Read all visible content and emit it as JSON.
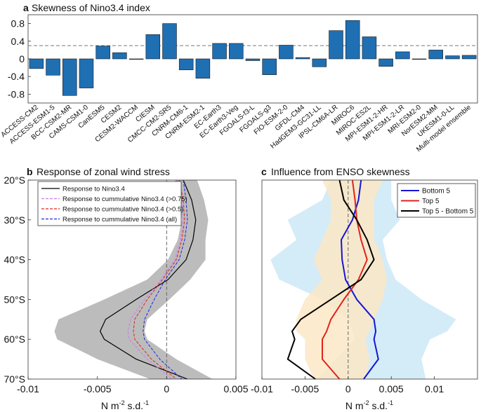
{
  "chart_data": [
    {
      "panel": "a",
      "type": "bar",
      "title": "Skewness of Nino3.4 index",
      "color": "#1f6fb3",
      "ylim": [
        -1.0,
        1.0
      ],
      "yticks": [
        -0.8,
        -0.4,
        0,
        0.4,
        0.8
      ],
      "ytick_labels": [
        "-0.8",
        "-0.4",
        "0",
        "0.4",
        "0.8"
      ],
      "threshold": 0.3,
      "categories": [
        "ACCESS-CM2",
        "ACCESS-ESM1-5",
        "BCC-CSM2-MR",
        "CAMS-CSM1-0",
        "CanESM5",
        "CESM2",
        "CESM2-WACCM",
        "CIESM",
        "CMCC-CM2-SR5",
        "CNRM-CM6-1",
        "CNRM-ESM2-1",
        "EC-Earth3",
        "EC-Earth3-Veg",
        "FGOALS-f3-L",
        "FGOALS-g3",
        "FIO-ESM-2-0",
        "GFDL-CM4",
        "HadGEM3-GC31-LL",
        "IPSL-CM6A-LR",
        "MIROC6",
        "MIROC-ES2L",
        "MPI-ESM1-2-HR",
        "MPI-ESM1-2-LR",
        "MRI-ESM2-0",
        "NorESM2-MM",
        "UKESM1-0-LL",
        "Multi-model ensemble"
      ],
      "values": [
        -0.22,
        -0.37,
        -0.83,
        -0.66,
        0.29,
        0.14,
        -0.01,
        0.55,
        0.8,
        -0.25,
        -0.44,
        0.35,
        0.35,
        -0.04,
        -0.36,
        0.31,
        0.03,
        -0.18,
        0.64,
        0.87,
        0.5,
        -0.17,
        0.16,
        0.0,
        0.2,
        0.07,
        0.08
      ]
    },
    {
      "panel": "b",
      "type": "line",
      "title": "Response of zonal wind stress",
      "xlabel_base": "N m",
      "xlabel_sup1": "-2",
      "xlabel_mid": " s.d.",
      "xlabel_sup2": "-1",
      "xlim": [
        -0.01,
        0.005
      ],
      "xticks": [
        -0.01,
        -0.005,
        0,
        0.005
      ],
      "xtick_labels": [
        "-0.01",
        "-0.005",
        "0",
        "0.005"
      ],
      "ylim": [
        -70,
        -20
      ],
      "yticks": [
        -20,
        -30,
        -40,
        -50,
        -60,
        -70
      ],
      "ytick_labels": [
        "20°S",
        "30°S",
        "40°S",
        "50°S",
        "60°S",
        "70°S"
      ],
      "lat": [
        -20,
        -25,
        -30,
        -35,
        -40,
        -45,
        -50,
        -55,
        -58,
        -60,
        -65,
        -70
      ],
      "shading": {
        "name": "Response to Nino3.4 spread",
        "color": "#b5b5b5",
        "lower": [
          0.0006,
          0.0009,
          0.0011,
          0.0008,
          0.0001,
          -0.0014,
          -0.0045,
          -0.0078,
          -0.0081,
          -0.0079,
          -0.005,
          -0.0012
        ],
        "upper": [
          0.0022,
          0.0027,
          0.003,
          0.0028,
          0.0028,
          0.0017,
          0.0002,
          -0.0014,
          -0.0016,
          -0.0014,
          0.0007,
          0.0033
        ]
      },
      "legend": [
        {
          "label": "Response to Nino3.4",
          "color": "#000000",
          "dash": "solid"
        },
        {
          "label": "Response to cummulative Nino3.4 (>0.75)",
          "color": "#c77de8",
          "dash": "dashed"
        },
        {
          "label": "Response to cummulative Nino3.4 (>0.5)",
          "color": "#e2231a",
          "dash": "dashed"
        },
        {
          "label": "Response to cummulative Nino3.4 (all)",
          "color": "#2424e0",
          "dash": "dashed"
        }
      ],
      "series": [
        {
          "name": "Response to Nino3.4",
          "values": [
            0.0012,
            0.0018,
            0.0021,
            0.0019,
            0.0014,
            0.0001,
            -0.0022,
            -0.0044,
            -0.0048,
            -0.0045,
            -0.0022,
            0.0015
          ]
        },
        {
          "name": "Response to cummulative Nino3.4 (>0.75)",
          "values": [
            0.0007,
            0.0011,
            0.0012,
            0.001,
            0.0006,
            -0.0004,
            -0.0016,
            -0.0026,
            -0.0028,
            -0.0027,
            -0.0014,
            0.0004
          ]
        },
        {
          "name": "Response to cummulative Nino3.4 (>0.5)",
          "values": [
            0.0009,
            0.0012,
            0.0013,
            0.0011,
            0.0007,
            -0.0003,
            -0.0014,
            -0.0023,
            -0.0024,
            -0.0023,
            -0.0011,
            0.0007
          ]
        },
        {
          "name": "Response to cummulative Nino3.4 (all)",
          "values": [
            0.0012,
            0.0014,
            0.0015,
            0.0013,
            0.0009,
            -0.0001,
            -0.0009,
            -0.0016,
            -0.0017,
            -0.0016,
            -0.0005,
            0.0011
          ]
        }
      ]
    },
    {
      "panel": "c",
      "type": "line",
      "title": "Influence from ENSO skewness",
      "xlabel_base": "N m",
      "xlabel_sup1": "-2",
      "xlabel_mid": " s.d.",
      "xlabel_sup2": "-1",
      "xlim": [
        -0.01,
        0.015
      ],
      "xticks": [
        -0.01,
        -0.005,
        0,
        0.005,
        0.01
      ],
      "xtick_labels": [
        "-0.01",
        "-0.005",
        "0",
        "0.005",
        "0.01"
      ],
      "ylim": [
        -70,
        -20
      ],
      "lat": [
        -20,
        -25,
        -30,
        -35,
        -40,
        -45,
        -50,
        -55,
        -58,
        -60,
        -65,
        -70
      ],
      "shading": [
        {
          "name": "Bottom 5 spread",
          "color": "#cde9f6",
          "lower": [
            -0.002,
            -0.003,
            -0.007,
            -0.006,
            -0.009,
            -0.008,
            -0.003,
            0.0,
            0.0005,
            0.0008,
            -0.0015,
            -0.0035
          ],
          "upper": [
            0.005,
            0.005,
            0.006,
            0.004,
            0.0045,
            0.0055,
            0.0085,
            0.0125,
            0.0115,
            0.0095,
            0.0085,
            0.009
          ]
        },
        {
          "name": "Top 5 spread",
          "color": "#fbe7c6",
          "lower": [
            -0.003,
            -0.002,
            -0.002,
            -0.003,
            -0.004,
            -0.003,
            -0.005,
            -0.006,
            -0.006,
            -0.005,
            -0.005,
            -0.004
          ],
          "upper": [
            0.004,
            0.003,
            0.003,
            0.003,
            0.004,
            0.0045,
            0.004,
            0.003,
            0.0025,
            0.002,
            0.0025,
            0.002
          ]
        }
      ],
      "legend": [
        {
          "label": "Bottom 5",
          "color": "#1515d6"
        },
        {
          "label": "Top 5",
          "color": "#e2231a"
        },
        {
          "label": "Top 5 - Bottom 5",
          "color": "#000000"
        }
      ],
      "series": [
        {
          "name": "Bottom 5",
          "values": [
            0.0015,
            0.0012,
            0.0005,
            -0.0008,
            -0.0007,
            -0.0003,
            0.001,
            0.003,
            0.0032,
            0.003,
            0.0035,
            0.0018
          ]
        },
        {
          "name": "Top 5",
          "values": [
            0.0005,
            0.0008,
            0.001,
            0.0015,
            0.0022,
            0.0012,
            -0.0005,
            -0.002,
            -0.0025,
            -0.003,
            -0.003,
            -0.001
          ]
        },
        {
          "name": "Top 5 - Bottom 5",
          "values": [
            -0.001,
            -0.0005,
            0.001,
            0.0022,
            0.003,
            0.0015,
            -0.002,
            -0.0055,
            -0.0065,
            -0.0062,
            -0.007,
            -0.0038
          ]
        }
      ]
    }
  ]
}
